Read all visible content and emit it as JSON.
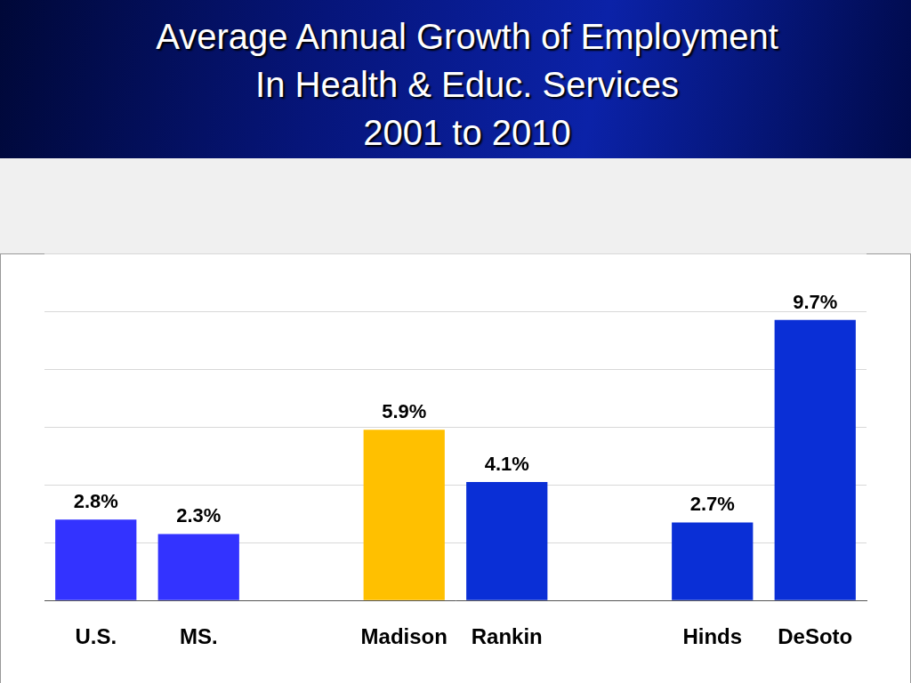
{
  "chart_data": {
    "type": "bar",
    "title": "Average Annual Growth of Employment\nIn Health & Educ. Services\n2001 to 2010",
    "categories": [
      "U.S.",
      "MS.",
      null,
      "Madison",
      "Rankin",
      null,
      "Hinds",
      "DeSoto"
    ],
    "values": [
      2.8,
      2.3,
      null,
      5.9,
      4.1,
      null,
      2.7,
      9.7
    ],
    "value_labels": [
      "2.8%",
      "2.3%",
      null,
      "5.9%",
      "4.1%",
      null,
      "2.7%",
      "9.7%"
    ],
    "colors": [
      "#3333ff",
      "#3333ff",
      null,
      "#ffc000",
      "#0a2fd6",
      null,
      "#0a2fd6",
      "#0a2fd6"
    ],
    "ylim": [
      0,
      12
    ],
    "yticks": [
      0,
      2,
      4,
      6,
      8,
      10,
      12
    ],
    "grid": true,
    "data_labels": true,
    "tick_labels": "x"
  }
}
